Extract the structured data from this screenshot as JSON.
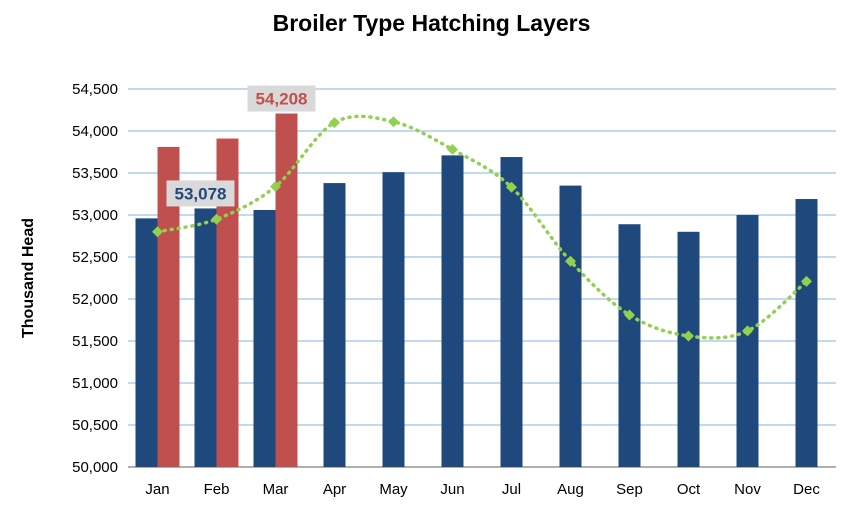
{
  "chart_data": {
    "type": "bar",
    "title": "Broiler Type Hatching Layers",
    "ylabel": "Thousand Head",
    "xlabel": "",
    "ylim": [
      50000,
      54500
    ],
    "yticks": [
      50000,
      50500,
      51000,
      51500,
      52000,
      52500,
      53000,
      53500,
      54000,
      54500
    ],
    "ytick_labels": [
      "50,000",
      "50,500",
      "51,000",
      "51,500",
      "52,000",
      "52,500",
      "53,000",
      "53,500",
      "54,000",
      "54,500"
    ],
    "grid": true,
    "categories": [
      "Jan",
      "Feb",
      "Mar",
      "Apr",
      "May",
      "Jun",
      "Jul",
      "Aug",
      "Sep",
      "Oct",
      "Nov",
      "Dec"
    ],
    "series": [
      {
        "color": "#1f497d",
        "values": [
          52960,
          53078,
          53060,
          53380,
          53510,
          53710,
          53690,
          53350,
          52890,
          52800,
          53000,
          53190
        ]
      },
      {
        "color": "#c0504d",
        "values": [
          53810,
          53910,
          54208,
          null,
          null,
          null,
          null,
          null,
          null,
          null,
          null,
          null
        ]
      },
      {
        "type": "line",
        "style": "dotted-smooth",
        "marker": "diamond",
        "color": "#92d050",
        "values": [
          52800,
          52950,
          53340,
          54100,
          54110,
          53780,
          53330,
          52450,
          51810,
          51560,
          51620,
          52210
        ]
      }
    ],
    "annotations": [
      {
        "text": "53,078",
        "category": "Feb",
        "series": 0,
        "color": "#1f497d"
      },
      {
        "text": "54,208",
        "category": "Mar",
        "series": 1,
        "color": "#c0504d"
      }
    ]
  }
}
